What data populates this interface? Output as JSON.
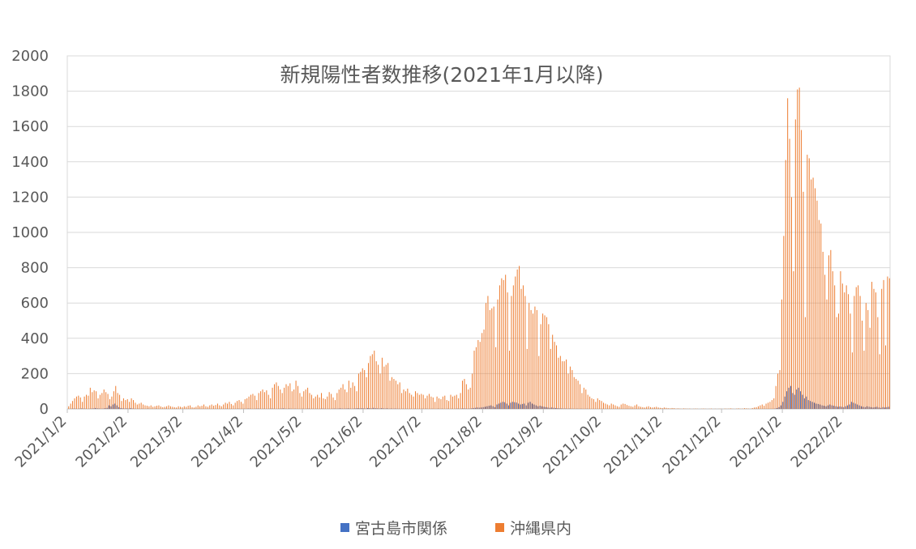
{
  "chart_data": {
    "type": "bar",
    "title": "新規陽性者数推移(2021年1月以降)",
    "categories": [
      "2021/1/2",
      null,
      null,
      null,
      null,
      null,
      null,
      null,
      null,
      null,
      null,
      null,
      null,
      null,
      null,
      null,
      null,
      null,
      null,
      null,
      null,
      null,
      null,
      null,
      null,
      null,
      null,
      null,
      null,
      null,
      null,
      "2021/2/2",
      null,
      null,
      null,
      null,
      null,
      null,
      null,
      null,
      null,
      null,
      null,
      null,
      null,
      null,
      null,
      null,
      null,
      null,
      null,
      null,
      null,
      null,
      null,
      null,
      null,
      null,
      null,
      "2021/3/2",
      null,
      null,
      null,
      null,
      null,
      null,
      null,
      null,
      null,
      null,
      null,
      null,
      null,
      null,
      null,
      null,
      null,
      null,
      null,
      null,
      null,
      null,
      null,
      null,
      null,
      null,
      null,
      null,
      null,
      null,
      "2021/4/2",
      null,
      null,
      null,
      null,
      null,
      null,
      null,
      null,
      null,
      null,
      null,
      null,
      null,
      null,
      null,
      null,
      null,
      null,
      null,
      null,
      null,
      null,
      null,
      null,
      null,
      null,
      null,
      null,
      null,
      "2021/5/2",
      null,
      null,
      null,
      null,
      null,
      null,
      null,
      null,
      null,
      null,
      null,
      null,
      null,
      null,
      null,
      null,
      null,
      null,
      null,
      null,
      null,
      null,
      null,
      null,
      null,
      null,
      null,
      null,
      null,
      null,
      "2021/6/2",
      null,
      null,
      null,
      null,
      null,
      null,
      null,
      null,
      null,
      null,
      null,
      null,
      null,
      null,
      null,
      null,
      null,
      null,
      null,
      null,
      null,
      null,
      null,
      null,
      null,
      null,
      null,
      null,
      null,
      "2021/7/2",
      null,
      null,
      null,
      null,
      null,
      null,
      null,
      null,
      null,
      null,
      null,
      null,
      null,
      null,
      null,
      null,
      null,
      null,
      null,
      null,
      null,
      null,
      null,
      null,
      null,
      null,
      null,
      null,
      null,
      null,
      "2021/8/2",
      null,
      null,
      null,
      null,
      null,
      null,
      null,
      null,
      null,
      null,
      null,
      null,
      null,
      null,
      null,
      null,
      null,
      null,
      null,
      null,
      null,
      null,
      null,
      null,
      null,
      null,
      null,
      null,
      null,
      null,
      "2021/9/2",
      null,
      null,
      null,
      null,
      null,
      null,
      null,
      null,
      null,
      null,
      null,
      null,
      null,
      null,
      null,
      null,
      null,
      null,
      null,
      null,
      null,
      null,
      null,
      null,
      null,
      null,
      null,
      null,
      null,
      "2021/10/2",
      null,
      null,
      null,
      null,
      null,
      null,
      null,
      null,
      null,
      null,
      null,
      null,
      null,
      null,
      null,
      null,
      null,
      null,
      null,
      null,
      null,
      null,
      null,
      null,
      null,
      null,
      null,
      null,
      null,
      null,
      "2021/11/2",
      null,
      null,
      null,
      null,
      null,
      null,
      null,
      null,
      null,
      null,
      null,
      null,
      null,
      null,
      null,
      null,
      null,
      null,
      null,
      null,
      null,
      null,
      null,
      null,
      null,
      null,
      null,
      null,
      null,
      "2021/12/2",
      null,
      null,
      null,
      null,
      null,
      null,
      null,
      null,
      null,
      null,
      null,
      null,
      null,
      null,
      null,
      null,
      null,
      null,
      null,
      null,
      null,
      null,
      null,
      null,
      null,
      null,
      null,
      null,
      null,
      null,
      "2022/1/2",
      null,
      null,
      null,
      null,
      null,
      null,
      null,
      null,
      null,
      null,
      null,
      null,
      null,
      null,
      null,
      null,
      null,
      null,
      null,
      null,
      null,
      null,
      null,
      null,
      null,
      null,
      null,
      null,
      null,
      null,
      "2022/2/2",
      null,
      null,
      null,
      null,
      null,
      null,
      null,
      null,
      null,
      null,
      null,
      null,
      null,
      null,
      null,
      null,
      null,
      null,
      null,
      null,
      null,
      null,
      null
    ],
    "series": [
      {
        "name": "宮古島市関係",
        "color": "#4472c4",
        "values": [
          0,
          0,
          1,
          2,
          1,
          0,
          2,
          3,
          2,
          1,
          0,
          1,
          2,
          3,
          5,
          3,
          2,
          1,
          2,
          4,
          6,
          20,
          15,
          25,
          30,
          20,
          10,
          5,
          3,
          2,
          3,
          2,
          5,
          2,
          1,
          0,
          1,
          0,
          1,
          0,
          0,
          1,
          0,
          0,
          0,
          1,
          0,
          0,
          0,
          0,
          1,
          0,
          0,
          0,
          0,
          0,
          0,
          0,
          0,
          0,
          0,
          0,
          0,
          0,
          0,
          0,
          0,
          0,
          0,
          0,
          0,
          0,
          0,
          0,
          0,
          0,
          0,
          0,
          0,
          0,
          0,
          1,
          0,
          0,
          0,
          0,
          0,
          1,
          0,
          0,
          1,
          0,
          2,
          1,
          0,
          0,
          1,
          2,
          1,
          0,
          1,
          0,
          0,
          1,
          2,
          1,
          0,
          0,
          1,
          2,
          3,
          1,
          0,
          2,
          1,
          0,
          1,
          0,
          0,
          0,
          1,
          0,
          1,
          2,
          0,
          1,
          0,
          1,
          0,
          1,
          2,
          1,
          0,
          1,
          0,
          1,
          2,
          1,
          2,
          3,
          2,
          1,
          2,
          3,
          2,
          1,
          2,
          3,
          4,
          3,
          4,
          3,
          2,
          5,
          4,
          3,
          6,
          4,
          3,
          2,
          4,
          3,
          2,
          3,
          1,
          2,
          1,
          2,
          1,
          1,
          0,
          1,
          0,
          1,
          0,
          1,
          0,
          1,
          0,
          0,
          0,
          1,
          0,
          1,
          0,
          0,
          1,
          0,
          0,
          1,
          0,
          1,
          0,
          0,
          1,
          0,
          1,
          0,
          1,
          2,
          1,
          2,
          3,
          2,
          1,
          2,
          3,
          5,
          6,
          8,
          7,
          8,
          10,
          12,
          15,
          18,
          20,
          15,
          10,
          25,
          30,
          35,
          40,
          38,
          30,
          20,
          35,
          40,
          38,
          36,
          30,
          25,
          28,
          30,
          20,
          35,
          40,
          30,
          25,
          20,
          15,
          18,
          15,
          12,
          10,
          8,
          6,
          8,
          6,
          5,
          4,
          3,
          3,
          2,
          2,
          1,
          2,
          1,
          1,
          0,
          1,
          0,
          1,
          0,
          0,
          1,
          0,
          0,
          0,
          0,
          0,
          0,
          0,
          0,
          0,
          0,
          0,
          0,
          0,
          0,
          0,
          0,
          0,
          0,
          0,
          0,
          0,
          0,
          0,
          0,
          0,
          0,
          0,
          0,
          0,
          0,
          0,
          0,
          0,
          0,
          0,
          0,
          0,
          0,
          0,
          0,
          0,
          0,
          0,
          0,
          0,
          0,
          0,
          0,
          0,
          0,
          0,
          0,
          0,
          0,
          0,
          0,
          0,
          0,
          0,
          0,
          0,
          0,
          0,
          0,
          0,
          0,
          0,
          0,
          0,
          0,
          0,
          0,
          0,
          0,
          0,
          0,
          0,
          0,
          0,
          0,
          0,
          0,
          0,
          0,
          0,
          0,
          0,
          0,
          0,
          0,
          0,
          0,
          0,
          0,
          0,
          2,
          5,
          10,
          20,
          40,
          70,
          100,
          120,
          130,
          90,
          80,
          110,
          120,
          100,
          80,
          60,
          70,
          50,
          45,
          40,
          35,
          30,
          28,
          25,
          20,
          18,
          15,
          20,
          25,
          20,
          18,
          15,
          12,
          14,
          12,
          10,
          15,
          20,
          25,
          40,
          35,
          30,
          25,
          20,
          15,
          12,
          10,
          15,
          12,
          10,
          8,
          10,
          12,
          8,
          6,
          10,
          8,
          10,
          12
        ]
      },
      {
        "name": "沖縄県内",
        "color": "#ed7d31",
        "values": [
          15,
          30,
          45,
          60,
          70,
          75,
          65,
          40,
          70,
          80,
          75,
          120,
          95,
          105,
          100,
          60,
          80,
          90,
          110,
          95,
          85,
          55,
          70,
          100,
          130,
          90,
          80,
          45,
          60,
          50,
          55,
          40,
          60,
          50,
          35,
          25,
          30,
          35,
          25,
          20,
          18,
          15,
          20,
          12,
          15,
          18,
          20,
          14,
          10,
          12,
          15,
          20,
          15,
          12,
          10,
          8,
          15,
          12,
          10,
          15,
          12,
          18,
          20,
          10,
          8,
          12,
          20,
          15,
          18,
          25,
          15,
          12,
          20,
          25,
          18,
          22,
          30,
          20,
          15,
          25,
          35,
          30,
          40,
          28,
          20,
          35,
          45,
          50,
          40,
          30,
          55,
          60,
          70,
          80,
          85,
          75,
          50,
          90,
          100,
          110,
          95,
          105,
          80,
          60,
          120,
          140,
          150,
          130,
          110,
          90,
          120,
          140,
          130,
          145,
          100,
          110,
          160,
          130,
          90,
          70,
          100,
          110,
          120,
          90,
          80,
          60,
          70,
          80,
          65,
          90,
          60,
          55,
          70,
          95,
          85,
          65,
          50,
          90,
          110,
          120,
          140,
          110,
          95,
          160,
          120,
          150,
          130,
          100,
          200,
          210,
          230,
          220,
          180,
          260,
          300,
          310,
          330,
          270,
          250,
          200,
          290,
          240,
          250,
          260,
          160,
          180,
          170,
          160,
          140,
          150,
          90,
          110,
          100,
          115,
          90,
          80,
          70,
          100,
          90,
          80,
          85,
          80,
          60,
          75,
          85,
          70,
          65,
          40,
          70,
          60,
          55,
          70,
          75,
          50,
          45,
          80,
          70,
          75,
          80,
          60,
          90,
          160,
          170,
          140,
          110,
          120,
          200,
          330,
          350,
          390,
          380,
          430,
          450,
          600,
          640,
          560,
          570,
          580,
          350,
          620,
          700,
          740,
          730,
          760,
          660,
          330,
          640,
          700,
          750,
          790,
          810,
          680,
          700,
          640,
          340,
          600,
          560,
          540,
          580,
          560,
          300,
          480,
          540,
          530,
          520,
          480,
          340,
          420,
          380,
          360,
          290,
          300,
          270,
          270,
          280,
          200,
          240,
          220,
          180,
          170,
          160,
          140,
          90,
          120,
          110,
          80,
          70,
          60,
          55,
          40,
          60,
          50,
          45,
          35,
          30,
          25,
          20,
          30,
          25,
          20,
          15,
          12,
          25,
          30,
          28,
          22,
          18,
          15,
          12,
          20,
          25,
          15,
          12,
          10,
          8,
          12,
          15,
          10,
          8,
          10,
          12,
          8,
          6,
          5,
          8,
          6,
          4,
          3,
          5,
          4,
          2,
          3,
          2,
          1,
          3,
          2,
          1,
          2,
          0,
          1,
          2,
          1,
          0,
          1,
          2,
          1,
          0,
          1,
          2,
          0,
          1,
          0,
          1,
          1,
          0,
          2,
          1,
          2,
          3,
          1,
          0,
          2,
          3,
          1,
          2,
          4,
          3,
          2,
          1,
          5,
          8,
          10,
          15,
          20,
          25,
          18,
          30,
          35,
          40,
          50,
          60,
          130,
          200,
          220,
          620,
          980,
          1410,
          1760,
          1530,
          1200,
          780,
          1640,
          1810,
          1820,
          1580,
          1230,
          520,
          1440,
          1420,
          1300,
          1310,
          1250,
          1180,
          1070,
          1050,
          890,
          760,
          620,
          870,
          900,
          780,
          700,
          520,
          540,
          780,
          710,
          660,
          700,
          650,
          540,
          320,
          640,
          690,
          700,
          640,
          500,
          330,
          600,
          560,
          460,
          720,
          680,
          660,
          520,
          310,
          680,
          730,
          360,
          750,
          740
        ]
      }
    ],
    "ylim": [
      0,
      2000
    ],
    "yticks": [
      0,
      200,
      400,
      600,
      800,
      1000,
      1200,
      1400,
      1600,
      1800,
      2000
    ],
    "grid": true
  }
}
